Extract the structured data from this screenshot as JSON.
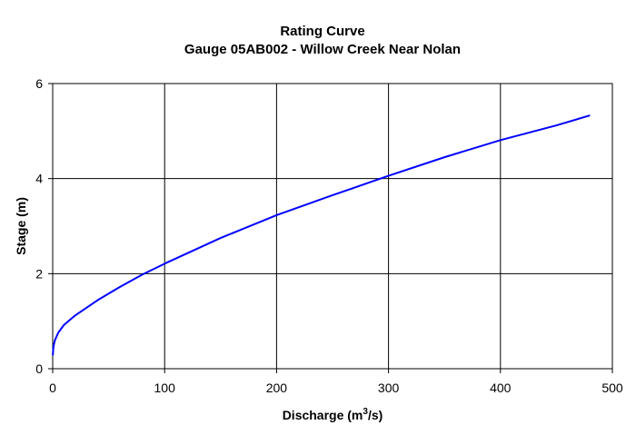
{
  "chart_data": {
    "type": "line",
    "title": "Rating Curve",
    "subtitle": "Gauge 05AB002 - Willow Creek Near Nolan",
    "xlabel_main": "Discharge (m",
    "xlabel_sup": "3",
    "xlabel_tail": "/s)",
    "ylabel": "Stage (m)",
    "xlim": [
      0,
      500
    ],
    "ylim": [
      0,
      6
    ],
    "xticks": [
      0,
      100,
      200,
      300,
      400,
      500
    ],
    "yticks": [
      0,
      2,
      4,
      6
    ],
    "grid": true,
    "legend": "none",
    "series": [
      {
        "color": "#0000ff",
        "x": [
          0.1,
          0.5,
          1,
          2,
          5,
          10,
          20,
          40,
          60,
          80,
          100,
          150,
          200,
          250,
          300,
          350,
          400,
          450,
          480
        ],
        "y": [
          0.28,
          0.42,
          0.5,
          0.6,
          0.76,
          0.92,
          1.12,
          1.44,
          1.72,
          1.98,
          2.21,
          2.75,
          3.23,
          3.65,
          4.06,
          4.45,
          4.81,
          5.12,
          5.33
        ]
      }
    ]
  }
}
